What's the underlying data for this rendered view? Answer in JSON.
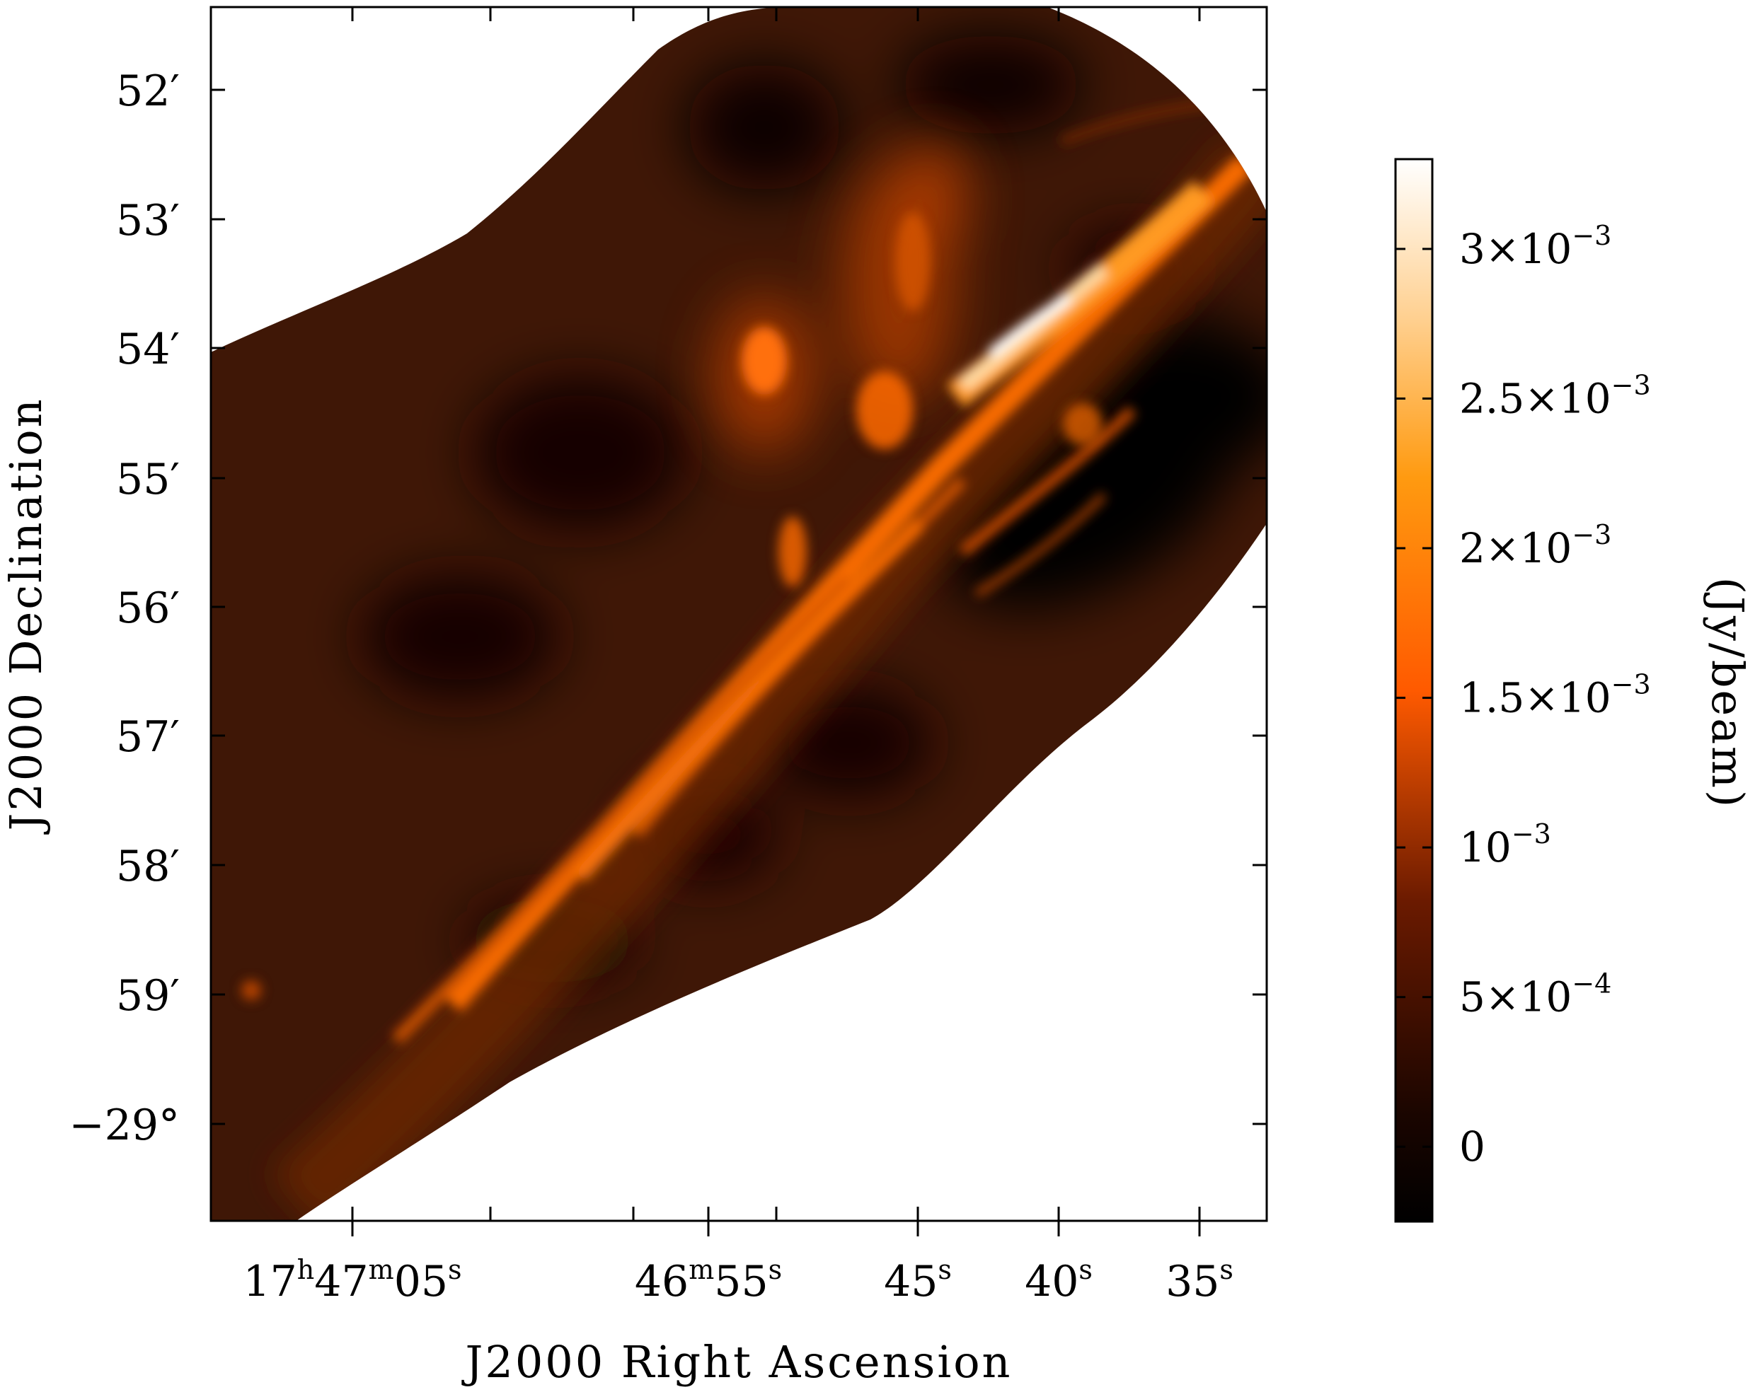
{
  "figure": {
    "xlabel": "J2000 Right Ascension",
    "ylabel": "J2000 Declination",
    "colorbar_label": "(Jy/beam)",
    "colormap": "afmhot",
    "colors": {
      "low": "#000000",
      "mid": "#ff6a00",
      "high": "#ffffff",
      "frame": "#000000",
      "background": "#ffffff"
    },
    "x_ticks": [
      {
        "main": "17",
        "parts": [
          [
            "h",
            "47"
          ],
          [
            "m",
            "05"
          ],
          [
            "s",
            ""
          ]
        ]
      },
      {
        "main": "46",
        "parts": [
          [
            "m",
            "55"
          ],
          [
            "s",
            ""
          ]
        ]
      },
      {
        "main": "45",
        "parts": [
          [
            "s",
            ""
          ]
        ]
      },
      {
        "main": "40",
        "parts": [
          [
            "s",
            ""
          ]
        ]
      },
      {
        "main": "35",
        "parts": [
          [
            "s",
            ""
          ]
        ]
      }
    ],
    "y_ticks": [
      "52′",
      "53′",
      "54′",
      "55′",
      "56′",
      "57′",
      "58′",
      "59′",
      "−29°"
    ],
    "colorbar_ticks": [
      {
        "mant": "3×10",
        "exp": "−3"
      },
      {
        "mant": "2.5×10",
        "exp": "−3"
      },
      {
        "mant": "2×10",
        "exp": "−3"
      },
      {
        "mant": "1.5×10",
        "exp": "−3"
      },
      {
        "mant": "10",
        "exp": "−3"
      },
      {
        "mant": "5×10",
        "exp": "−4"
      },
      {
        "mant": "0",
        "exp": ""
      }
    ],
    "colorbar_values": [
      0.003,
      0.0025,
      0.002,
      0.0015,
      0.001,
      0.0005,
      0
    ],
    "colorbar_range": [
      -0.00025,
      0.0033
    ]
  }
}
